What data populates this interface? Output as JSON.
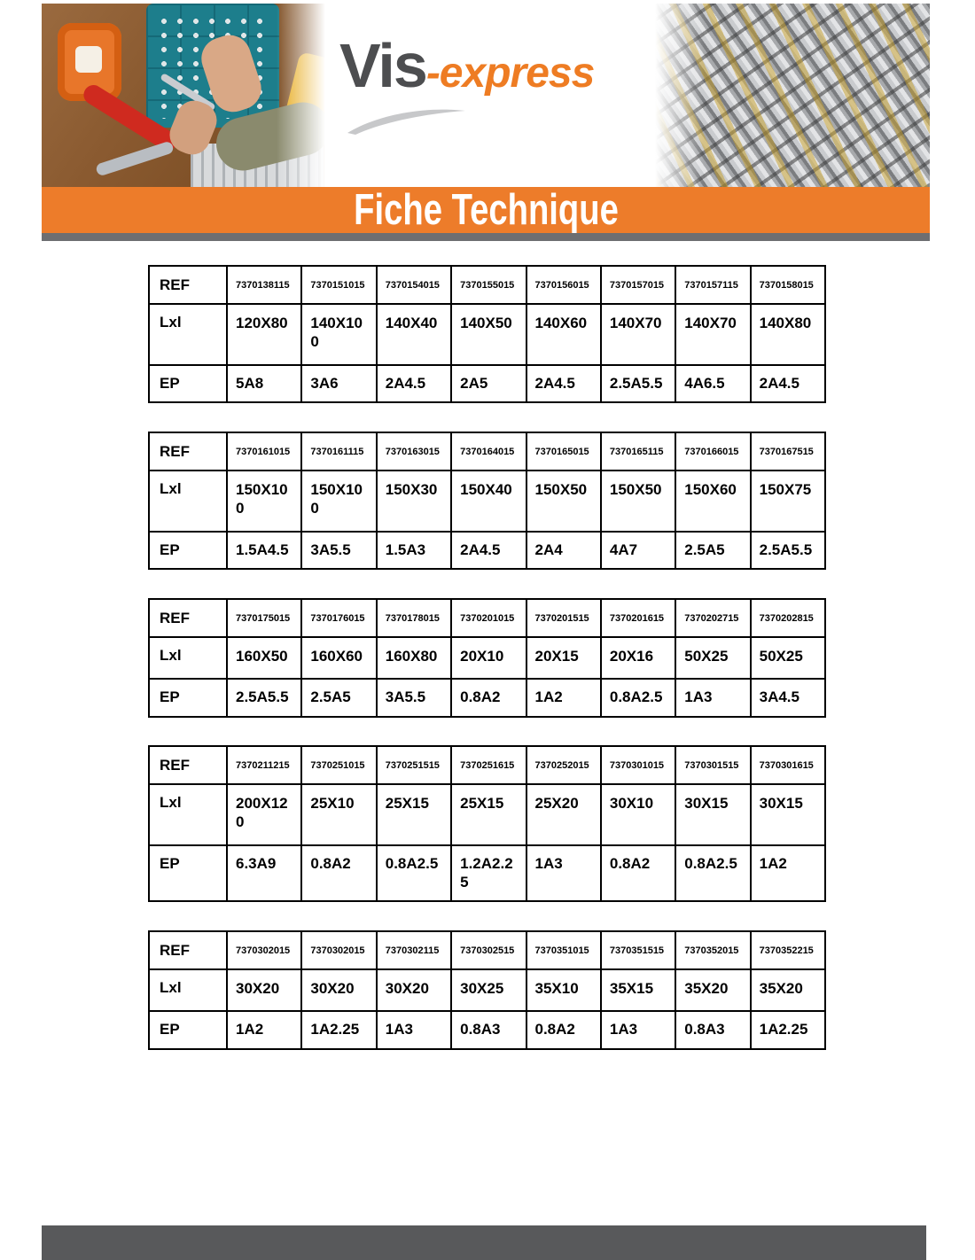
{
  "brand": {
    "name_primary": "Vis",
    "name_secondary": "-express"
  },
  "banner": {
    "title": "Fiche Technique"
  },
  "row_labels": {
    "ref": "REF",
    "dim": "Lxl",
    "ep": "EP"
  },
  "tables": [
    {
      "refs": [
        "7370138115",
        "7370151015",
        "7370154015",
        "7370155015",
        "7370156015",
        "7370157015",
        "7370157115",
        "7370158015"
      ],
      "dims": [
        "120X80",
        "140X100",
        "140X40",
        "140X50",
        "140X60",
        "140X70",
        "140X70",
        "140X80"
      ],
      "eps": [
        "5A8",
        "3A6",
        "2A4.5",
        "2A5",
        "2A4.5",
        "2.5A5.5",
        "4A6.5",
        "2A4.5"
      ]
    },
    {
      "refs": [
        "7370161015",
        "7370161115",
        "7370163015",
        "7370164015",
        "7370165015",
        "7370165115",
        "7370166015",
        "7370167515"
      ],
      "dims": [
        "150X100",
        "150X100",
        "150X30",
        "150X40",
        "150X50",
        "150X50",
        "150X60",
        "150X75"
      ],
      "eps": [
        "1.5A4.5",
        "3A5.5",
        "1.5A3",
        "2A4.5",
        "2A4",
        "4A7",
        "2.5A5",
        "2.5A5.5"
      ]
    },
    {
      "refs": [
        "7370175015",
        "7370176015",
        "7370178015",
        "7370201015",
        "7370201515",
        "7370201615",
        "7370202715",
        "7370202815"
      ],
      "dims": [
        "160X50",
        "160X60",
        "160X80",
        "20X10",
        "20X15",
        "20X16",
        "50X25",
        "50X25"
      ],
      "eps": [
        "2.5A5.5",
        "2.5A5",
        "3A5.5",
        "0.8A2",
        "1A2",
        "0.8A2.5",
        "1A3",
        "3A4.5"
      ]
    },
    {
      "refs": [
        "7370211215",
        "7370251015",
        "7370251515",
        "7370251615",
        "7370252015",
        "7370301015",
        "7370301515",
        "7370301615"
      ],
      "dims": [
        "200X120",
        "25X10",
        "25X15",
        "25X15",
        "25X20",
        "30X10",
        "30X15",
        "30X15"
      ],
      "eps": [
        "6.3A9",
        "0.8A2",
        "0.8A2.5",
        "1.2A2.25",
        "1A3",
        "0.8A2",
        "0.8A2.5",
        "1A2"
      ]
    },
    {
      "refs": [
        "7370302015",
        "7370302015",
        "7370302115",
        "7370302515",
        "7370351015",
        "7370351515",
        "7370352015",
        "7370352215"
      ],
      "dims": [
        "30X20",
        "30X20",
        "30X20",
        "30X25",
        "35X10",
        "35X15",
        "35X20",
        "35X20"
      ],
      "eps": [
        "1A2",
        "1A2.25",
        "1A3",
        "0.8A3",
        "0.8A2",
        "1A3",
        "0.8A3",
        "1A2.25"
      ]
    }
  ],
  "colors": {
    "accent_orange": "#ed7c2a",
    "logo_orange": "#ee7c23",
    "logo_gray": "#4d4e50",
    "strip_gray": "#6d6e71",
    "footer_gray": "#58595b"
  }
}
